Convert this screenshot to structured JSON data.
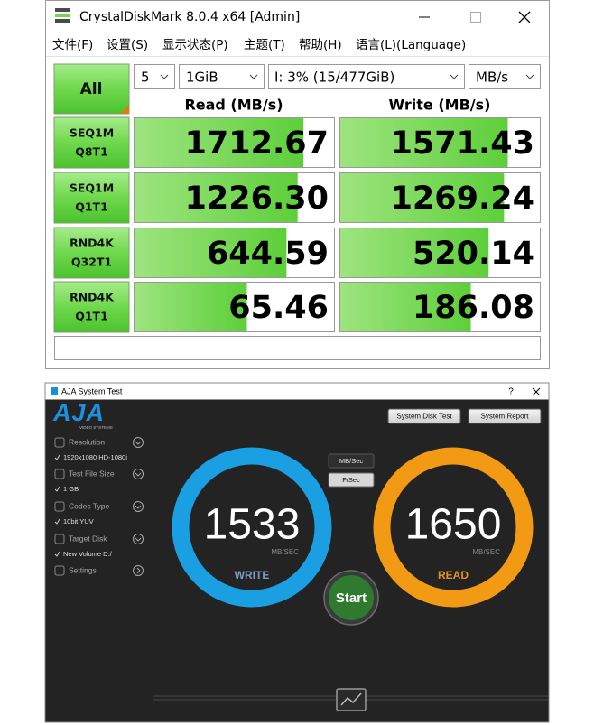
{
  "crystaldiskmark": {
    "title": "CrystalDiskMark 8.0.4 x64 [Admin]",
    "menu": [
      "文件(F)",
      "设置(S)",
      "显示状态(P)",
      "主题(T)",
      "帮助(H)",
      "语言(L)(Language)"
    ],
    "all_button": "All",
    "count": "5",
    "size": "1GiB",
    "drive": "I: 3% (15/477GiB)",
    "unit": "MB/s",
    "columns": [
      "Read (MB/s)",
      "Write (MB/s)"
    ],
    "rows": [
      {
        "label": [
          "SEQ1M",
          "Q8T1"
        ],
        "read": "1712.67",
        "write": "1571.43"
      },
      {
        "label": [
          "SEQ1M",
          "Q1T1"
        ],
        "read": "1226.30",
        "write": "1269.24"
      },
      {
        "label": [
          "RND4K",
          "Q32T1"
        ],
        "read": "644.59",
        "write": "520.14"
      },
      {
        "label": [
          "RND4K",
          "Q1T1"
        ],
        "read": "65.46",
        "write": "186.08"
      }
    ]
  },
  "aja": {
    "title": "AJA System Test",
    "help": "?",
    "logo": "AJA",
    "logo_sub": "VIDEO SYSTEMS",
    "buttons": [
      "System Disk Test",
      "System Report"
    ],
    "settings": [
      {
        "label": "Resolution",
        "value": "1920x1080 HD-1080i"
      },
      {
        "label": "Test File Size",
        "value": "1 GB"
      },
      {
        "label": "Codec Type",
        "value": "10bit YUV"
      },
      {
        "label": "Target Disk",
        "value": "New Volume D:/"
      },
      {
        "label": "Settings"
      }
    ],
    "units": [
      "MB/Sec",
      "F/Sec"
    ],
    "write": {
      "value": "1533",
      "unit": "MB/SEC",
      "label": "WRITE"
    },
    "read": {
      "value": "1650",
      "unit": "MB/SEC",
      "label": "READ"
    },
    "start": "Start"
  }
}
